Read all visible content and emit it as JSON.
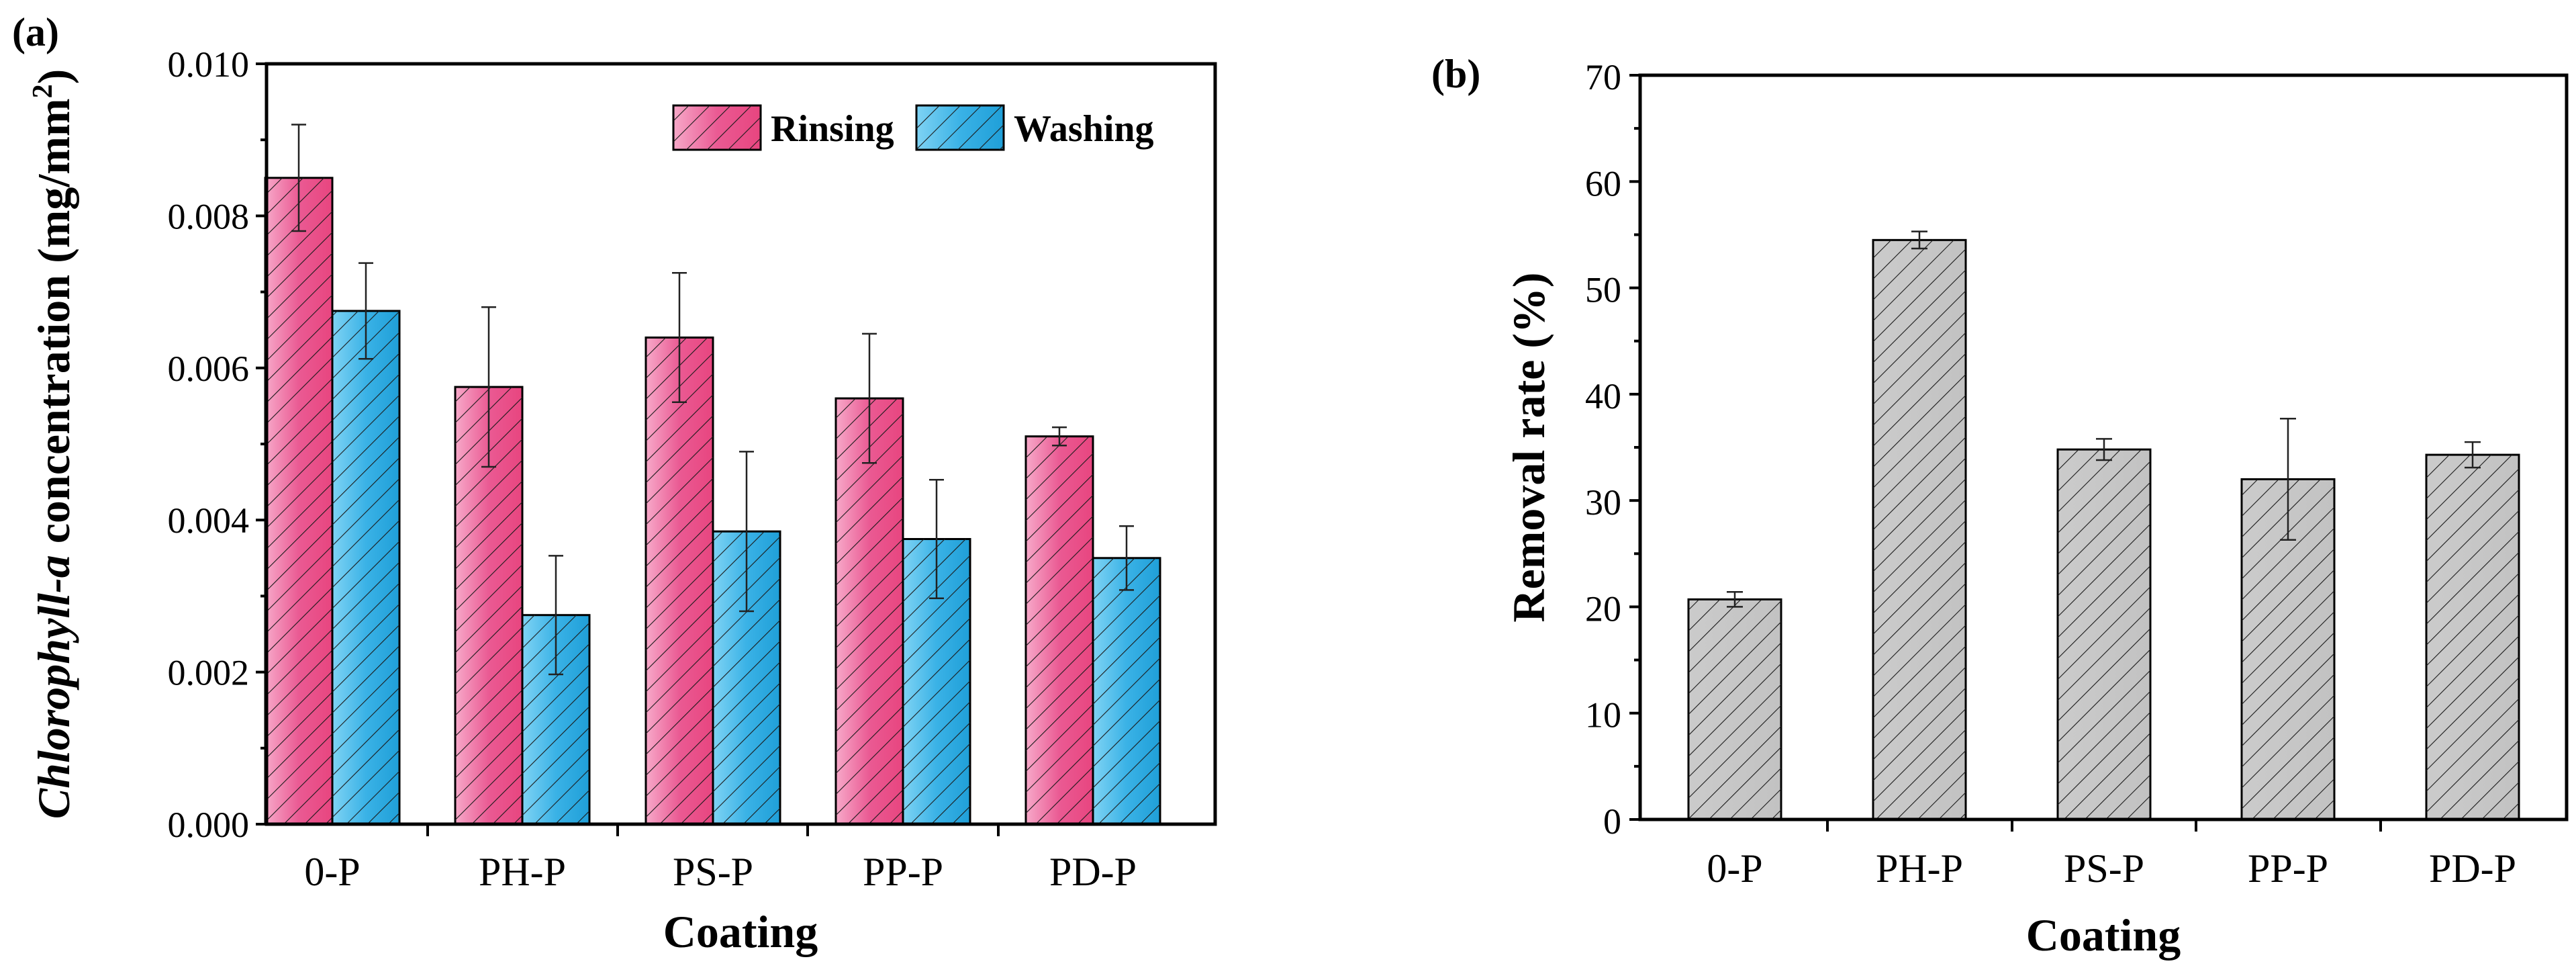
{
  "chart_data": [
    {
      "panel_label": "(a)",
      "type": "bar",
      "categories": [
        "0-P",
        "PH-P",
        "PS-P",
        "PP-P",
        "PD-P"
      ],
      "series": [
        {
          "name": "Rinsing",
          "values": [
            0.0085,
            0.00575,
            0.0064,
            0.0056,
            0.0051
          ],
          "errors": [
            0.0007,
            0.00105,
            0.00085,
            0.00085,
            0.00012
          ],
          "color": "#e8508a"
        },
        {
          "name": "Washing",
          "values": [
            0.00675,
            0.00275,
            0.00385,
            0.00375,
            0.0035
          ],
          "errors": [
            0.00063,
            0.00078,
            0.00105,
            0.00078,
            0.00042
          ],
          "color": "#3db3e6"
        }
      ],
      "xlabel": "Coating",
      "ylabel_italic": "Chlorophyll-a",
      "ylabel_rest": " concentration (mg/mm",
      "ylabel_sup": "2",
      "ylabel_close": ")",
      "ylim": [
        0,
        0.01
      ],
      "yticks": [
        "0.000",
        "0.002",
        "0.004",
        "0.006",
        "0.008",
        "0.010"
      ],
      "legend_position": "top-right",
      "grid": false
    },
    {
      "panel_label": "(b)",
      "type": "bar",
      "categories": [
        "0-P",
        "PH-P",
        "PS-P",
        "PP-P",
        "PD-P"
      ],
      "series": [
        {
          "name": "",
          "values": [
            20.7,
            54.5,
            34.8,
            32.0,
            34.3
          ],
          "errors": [
            0.7,
            0.8,
            1.0,
            5.7,
            1.2
          ],
          "color": "#c8c8c8"
        }
      ],
      "xlabel": "Coating",
      "ylabel": "Removal rate (%)",
      "ylim": [
        0,
        70
      ],
      "yticks": [
        "0",
        "10",
        "20",
        "30",
        "40",
        "50",
        "60",
        "70"
      ],
      "grid": false
    }
  ]
}
